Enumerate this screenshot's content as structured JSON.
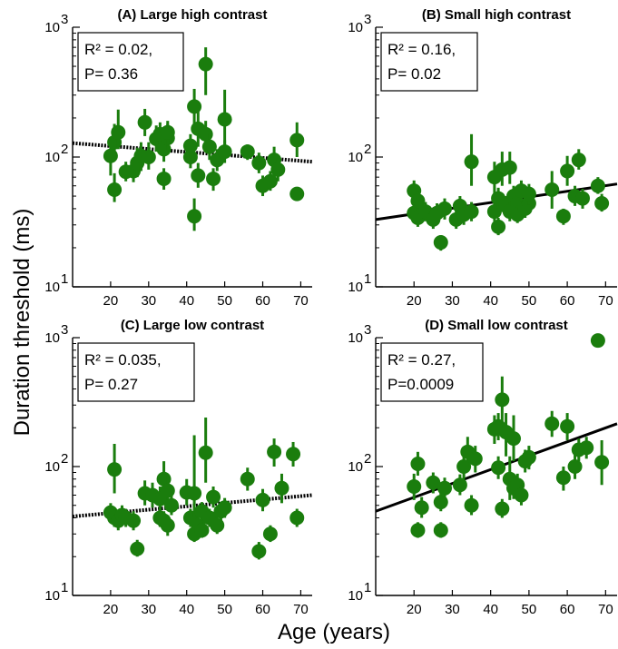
{
  "figure": {
    "ylabel": "Duration threshold (ms)",
    "xlabel": "Age (years)"
  },
  "chart_data": [
    {
      "type": "scatter",
      "title": "(A) Large high contrast",
      "stat_r2": "R² = 0.02,",
      "stat_p": "P= 0.36",
      "xlim": [
        10,
        73
      ],
      "ylim": [
        10,
        1000
      ],
      "yscale": "log",
      "xticks": [
        20,
        30,
        40,
        50,
        60,
        70
      ],
      "yticks": [
        10,
        100,
        1000
      ],
      "ytick_labels": [
        {
          "base": "10",
          "exp": "1"
        },
        {
          "base": "10",
          "exp": "2"
        },
        {
          "base": "10",
          "exp": "3"
        }
      ],
      "fit": {
        "style": "dotted",
        "x": [
          10,
          73
        ],
        "y": [
          128,
          92
        ]
      },
      "points": [
        {
          "x": 20,
          "y": 102,
          "lo": 72,
          "hi": 138
        },
        {
          "x": 21,
          "y": 56,
          "lo": 45,
          "hi": 75
        },
        {
          "x": 21,
          "y": 130,
          "lo": 95,
          "hi": 180
        },
        {
          "x": 22,
          "y": 155,
          "lo": 115,
          "hi": 232
        },
        {
          "x": 24,
          "y": 77,
          "lo": 65,
          "hi": 92
        },
        {
          "x": 26,
          "y": 78,
          "lo": 64,
          "hi": 96
        },
        {
          "x": 27,
          "y": 90,
          "lo": 70,
          "hi": 118
        },
        {
          "x": 28,
          "y": 102,
          "lo": 78,
          "hi": 130
        },
        {
          "x": 29,
          "y": 185,
          "lo": 145,
          "hi": 235
        },
        {
          "x": 30,
          "y": 100,
          "lo": 80,
          "hi": 130
        },
        {
          "x": 32,
          "y": 138,
          "lo": 110,
          "hi": 175
        },
        {
          "x": 33,
          "y": 150,
          "lo": 120,
          "hi": 185
        },
        {
          "x": 34,
          "y": 68,
          "lo": 56,
          "hi": 82
        },
        {
          "x": 34,
          "y": 115,
          "lo": 92,
          "hi": 145
        },
        {
          "x": 35,
          "y": 140,
          "lo": 112,
          "hi": 180
        },
        {
          "x": 35,
          "y": 155,
          "lo": 125,
          "hi": 190
        },
        {
          "x": 41,
          "y": 100,
          "lo": 82,
          "hi": 125
        },
        {
          "x": 41,
          "y": 122,
          "lo": 98,
          "hi": 150
        },
        {
          "x": 42,
          "y": 35,
          "lo": 27,
          "hi": 48
        },
        {
          "x": 42,
          "y": 245,
          "lo": 175,
          "hi": 335
        },
        {
          "x": 43,
          "y": 72,
          "lo": 58,
          "hi": 90
        },
        {
          "x": 43,
          "y": 165,
          "lo": 120,
          "hi": 225
        },
        {
          "x": 45,
          "y": 520,
          "lo": 300,
          "hi": 700
        },
        {
          "x": 45,
          "y": 150,
          "lo": 110,
          "hi": 190
        },
        {
          "x": 46,
          "y": 120,
          "lo": 95,
          "hi": 150
        },
        {
          "x": 47,
          "y": 68,
          "lo": 55,
          "hi": 82
        },
        {
          "x": 48,
          "y": 95,
          "lo": 78,
          "hi": 115
        },
        {
          "x": 50,
          "y": 110,
          "lo": 90,
          "hi": 135
        },
        {
          "x": 50,
          "y": 195,
          "lo": 120,
          "hi": 330
        },
        {
          "x": 56,
          "y": 110,
          "lo": 95,
          "hi": 125
        },
        {
          "x": 59,
          "y": 90,
          "lo": 75,
          "hi": 108
        },
        {
          "x": 60,
          "y": 60,
          "lo": 50,
          "hi": 72
        },
        {
          "x": 62,
          "y": 65,
          "lo": 55,
          "hi": 78
        },
        {
          "x": 63,
          "y": 95,
          "lo": 75,
          "hi": 120
        },
        {
          "x": 64,
          "y": 80,
          "lo": 65,
          "hi": 98
        },
        {
          "x": 69,
          "y": 135,
          "lo": 100,
          "hi": 185
        },
        {
          "x": 69,
          "y": 52,
          "lo": 46,
          "hi": 58
        }
      ]
    },
    {
      "type": "scatter",
      "title": "(B) Small high contrast",
      "stat_r2": "R² = 0.16,",
      "stat_p": "P= 0.02",
      "xlim": [
        10,
        73
      ],
      "ylim": [
        10,
        1000
      ],
      "yscale": "log",
      "xticks": [
        20,
        30,
        40,
        50,
        60,
        70
      ],
      "yticks": [
        10,
        100,
        1000
      ],
      "ytick_labels": [
        {
          "base": "10",
          "exp": "1"
        },
        {
          "base": "10",
          "exp": "2"
        },
        {
          "base": "10",
          "exp": "3"
        }
      ],
      "fit": {
        "style": "solid",
        "x": [
          10,
          73
        ],
        "y": [
          33,
          62
        ]
      },
      "points": [
        {
          "x": 20,
          "y": 37,
          "lo": 31,
          "hi": 43
        },
        {
          "x": 20,
          "y": 55,
          "lo": 44,
          "hi": 66
        },
        {
          "x": 21,
          "y": 46,
          "lo": 38,
          "hi": 55
        },
        {
          "x": 21,
          "y": 34,
          "lo": 29,
          "hi": 40
        },
        {
          "x": 23,
          "y": 38,
          "lo": 32,
          "hi": 45
        },
        {
          "x": 25,
          "y": 33,
          "lo": 28,
          "hi": 39
        },
        {
          "x": 26,
          "y": 37,
          "lo": 31,
          "hi": 44
        },
        {
          "x": 27,
          "y": 22,
          "lo": 19,
          "hi": 25
        },
        {
          "x": 28,
          "y": 40,
          "lo": 33,
          "hi": 48
        },
        {
          "x": 31,
          "y": 33,
          "lo": 28,
          "hi": 39
        },
        {
          "x": 32,
          "y": 42,
          "lo": 35,
          "hi": 50
        },
        {
          "x": 33,
          "y": 36,
          "lo": 30,
          "hi": 43
        },
        {
          "x": 35,
          "y": 92,
          "lo": 60,
          "hi": 150
        },
        {
          "x": 35,
          "y": 38,
          "lo": 32,
          "hi": 45
        },
        {
          "x": 41,
          "y": 70,
          "lo": 52,
          "hi": 92
        },
        {
          "x": 41,
          "y": 38,
          "lo": 32,
          "hi": 45
        },
        {
          "x": 42,
          "y": 29,
          "lo": 25,
          "hi": 34
        },
        {
          "x": 42,
          "y": 48,
          "lo": 40,
          "hi": 58
        },
        {
          "x": 43,
          "y": 80,
          "lo": 60,
          "hi": 110
        },
        {
          "x": 44,
          "y": 42,
          "lo": 36,
          "hi": 50
        },
        {
          "x": 45,
          "y": 83,
          "lo": 62,
          "hi": 110
        },
        {
          "x": 45,
          "y": 38,
          "lo": 32,
          "hi": 45
        },
        {
          "x": 46,
          "y": 50,
          "lo": 42,
          "hi": 60
        },
        {
          "x": 47,
          "y": 44,
          "lo": 37,
          "hi": 52
        },
        {
          "x": 47,
          "y": 36,
          "lo": 31,
          "hi": 42
        },
        {
          "x": 48,
          "y": 55,
          "lo": 46,
          "hi": 66
        },
        {
          "x": 49,
          "y": 40,
          "lo": 34,
          "hi": 47
        },
        {
          "x": 50,
          "y": 44,
          "lo": 37,
          "hi": 52
        },
        {
          "x": 50,
          "y": 52,
          "lo": 43,
          "hi": 62
        },
        {
          "x": 56,
          "y": 56,
          "lo": 40,
          "hi": 78
        },
        {
          "x": 59,
          "y": 35,
          "lo": 30,
          "hi": 40
        },
        {
          "x": 60,
          "y": 78,
          "lo": 60,
          "hi": 102
        },
        {
          "x": 62,
          "y": 50,
          "lo": 42,
          "hi": 60
        },
        {
          "x": 63,
          "y": 95,
          "lo": 80,
          "hi": 115
        },
        {
          "x": 64,
          "y": 48,
          "lo": 40,
          "hi": 57
        },
        {
          "x": 68,
          "y": 60,
          "lo": 52,
          "hi": 70
        },
        {
          "x": 69,
          "y": 44,
          "lo": 38,
          "hi": 52
        }
      ]
    },
    {
      "type": "scatter",
      "title": "(C) Large low contrast",
      "stat_r2": "R² = 0.035,",
      "stat_p": "P= 0.27",
      "xlim": [
        10,
        73
      ],
      "ylim": [
        10,
        1000
      ],
      "yscale": "log",
      "xticks": [
        20,
        30,
        40,
        50,
        60,
        70
      ],
      "yticks": [
        10,
        100,
        1000
      ],
      "ytick_labels": [
        {
          "base": "10",
          "exp": "1"
        },
        {
          "base": "10",
          "exp": "2"
        },
        {
          "base": "10",
          "exp": "3"
        }
      ],
      "fit": {
        "style": "dotted",
        "x": [
          10,
          73
        ],
        "y": [
          41,
          60
        ]
      },
      "points": [
        {
          "x": 20,
          "y": 44,
          "lo": 37,
          "hi": 52
        },
        {
          "x": 21,
          "y": 40,
          "lo": 34,
          "hi": 47
        },
        {
          "x": 21,
          "y": 95,
          "lo": 62,
          "hi": 150
        },
        {
          "x": 22,
          "y": 38,
          "lo": 32,
          "hi": 45
        },
        {
          "x": 23,
          "y": 42,
          "lo": 35,
          "hi": 50
        },
        {
          "x": 24,
          "y": 40,
          "lo": 34,
          "hi": 47
        },
        {
          "x": 26,
          "y": 38,
          "lo": 32,
          "hi": 45
        },
        {
          "x": 27,
          "y": 23,
          "lo": 20,
          "hi": 27
        },
        {
          "x": 29,
          "y": 62,
          "lo": 50,
          "hi": 78
        },
        {
          "x": 31,
          "y": 60,
          "lo": 48,
          "hi": 75
        },
        {
          "x": 33,
          "y": 56,
          "lo": 45,
          "hi": 70
        },
        {
          "x": 33,
          "y": 40,
          "lo": 34,
          "hi": 47
        },
        {
          "x": 34,
          "y": 38,
          "lo": 32,
          "hi": 45
        },
        {
          "x": 34,
          "y": 80,
          "lo": 60,
          "hi": 110
        },
        {
          "x": 35,
          "y": 35,
          "lo": 29,
          "hi": 42
        },
        {
          "x": 35,
          "y": 65,
          "lo": 50,
          "hi": 85
        },
        {
          "x": 36,
          "y": 50,
          "lo": 42,
          "hi": 60
        },
        {
          "x": 40,
          "y": 63,
          "lo": 50,
          "hi": 80
        },
        {
          "x": 41,
          "y": 40,
          "lo": 34,
          "hi": 47
        },
        {
          "x": 42,
          "y": 30,
          "lo": 26,
          "hi": 35
        },
        {
          "x": 42,
          "y": 62,
          "lo": 40,
          "hi": 175
        },
        {
          "x": 43,
          "y": 35,
          "lo": 30,
          "hi": 41
        },
        {
          "x": 44,
          "y": 45,
          "lo": 38,
          "hi": 53
        },
        {
          "x": 44,
          "y": 32,
          "lo": 28,
          "hi": 37
        },
        {
          "x": 45,
          "y": 128,
          "lo": 75,
          "hi": 240
        },
        {
          "x": 46,
          "y": 40,
          "lo": 34,
          "hi": 47
        },
        {
          "x": 47,
          "y": 58,
          "lo": 48,
          "hi": 70
        },
        {
          "x": 48,
          "y": 35,
          "lo": 30,
          "hi": 41
        },
        {
          "x": 49,
          "y": 45,
          "lo": 38,
          "hi": 53
        },
        {
          "x": 50,
          "y": 48,
          "lo": 40,
          "hi": 57
        },
        {
          "x": 56,
          "y": 80,
          "lo": 65,
          "hi": 98
        },
        {
          "x": 59,
          "y": 22,
          "lo": 19,
          "hi": 26
        },
        {
          "x": 60,
          "y": 55,
          "lo": 45,
          "hi": 67
        },
        {
          "x": 62,
          "y": 30,
          "lo": 26,
          "hi": 35
        },
        {
          "x": 63,
          "y": 130,
          "lo": 100,
          "hi": 165
        },
        {
          "x": 65,
          "y": 68,
          "lo": 52,
          "hi": 88
        },
        {
          "x": 68,
          "y": 125,
          "lo": 100,
          "hi": 155
        },
        {
          "x": 69,
          "y": 40,
          "lo": 34,
          "hi": 47
        }
      ]
    },
    {
      "type": "scatter",
      "title": "(D) Small low contrast",
      "stat_r2": "R² = 0.27,",
      "stat_p": "P=0.0009",
      "xlim": [
        10,
        73
      ],
      "ylim": [
        10,
        1000
      ],
      "yscale": "log",
      "xticks": [
        20,
        30,
        40,
        50,
        60,
        70
      ],
      "yticks": [
        10,
        100,
        1000
      ],
      "ytick_labels": [
        {
          "base": "10",
          "exp": "1"
        },
        {
          "base": "10",
          "exp": "2"
        },
        {
          "base": "10",
          "exp": "3"
        }
      ],
      "fit": {
        "style": "solid",
        "x": [
          10,
          73
        ],
        "y": [
          45,
          215
        ]
      },
      "points": [
        {
          "x": 20,
          "y": 70,
          "lo": 55,
          "hi": 88
        },
        {
          "x": 21,
          "y": 105,
          "lo": 85,
          "hi": 130
        },
        {
          "x": 21,
          "y": 32,
          "lo": 28,
          "hi": 37
        },
        {
          "x": 22,
          "y": 48,
          "lo": 40,
          "hi": 58
        },
        {
          "x": 25,
          "y": 75,
          "lo": 62,
          "hi": 90
        },
        {
          "x": 27,
          "y": 32,
          "lo": 28,
          "hi": 37
        },
        {
          "x": 27,
          "y": 53,
          "lo": 45,
          "hi": 63
        },
        {
          "x": 28,
          "y": 68,
          "lo": 56,
          "hi": 82
        },
        {
          "x": 32,
          "y": 72,
          "lo": 60,
          "hi": 87
        },
        {
          "x": 33,
          "y": 100,
          "lo": 80,
          "hi": 125
        },
        {
          "x": 34,
          "y": 130,
          "lo": 100,
          "hi": 170
        },
        {
          "x": 35,
          "y": 50,
          "lo": 42,
          "hi": 60
        },
        {
          "x": 36,
          "y": 115,
          "lo": 90,
          "hi": 145
        },
        {
          "x": 41,
          "y": 195,
          "lo": 150,
          "hi": 250
        },
        {
          "x": 42,
          "y": 98,
          "lo": 80,
          "hi": 120
        },
        {
          "x": 42,
          "y": 205,
          "lo": 160,
          "hi": 260
        },
        {
          "x": 43,
          "y": 330,
          "lo": 220,
          "hi": 500
        },
        {
          "x": 43,
          "y": 47,
          "lo": 40,
          "hi": 56
        },
        {
          "x": 44,
          "y": 185,
          "lo": 120,
          "hi": 260
        },
        {
          "x": 45,
          "y": 80,
          "lo": 55,
          "hi": 120
        },
        {
          "x": 46,
          "y": 165,
          "lo": 110,
          "hi": 250
        },
        {
          "x": 46,
          "y": 68,
          "lo": 56,
          "hi": 82
        },
        {
          "x": 47,
          "y": 72,
          "lo": 58,
          "hi": 88
        },
        {
          "x": 48,
          "y": 60,
          "lo": 50,
          "hi": 72
        },
        {
          "x": 49,
          "y": 110,
          "lo": 90,
          "hi": 135
        },
        {
          "x": 50,
          "y": 118,
          "lo": 95,
          "hi": 145
        },
        {
          "x": 56,
          "y": 215,
          "lo": 170,
          "hi": 270
        },
        {
          "x": 59,
          "y": 82,
          "lo": 65,
          "hi": 100
        },
        {
          "x": 60,
          "y": 205,
          "lo": 160,
          "hi": 260
        },
        {
          "x": 62,
          "y": 100,
          "lo": 80,
          "hi": 125
        },
        {
          "x": 63,
          "y": 135,
          "lo": 110,
          "hi": 165
        },
        {
          "x": 65,
          "y": 140,
          "lo": 115,
          "hi": 170
        },
        {
          "x": 68,
          "y": 950,
          "lo": 880,
          "hi": 1020
        },
        {
          "x": 69,
          "y": 108,
          "lo": 72,
          "hi": 160
        }
      ]
    }
  ]
}
